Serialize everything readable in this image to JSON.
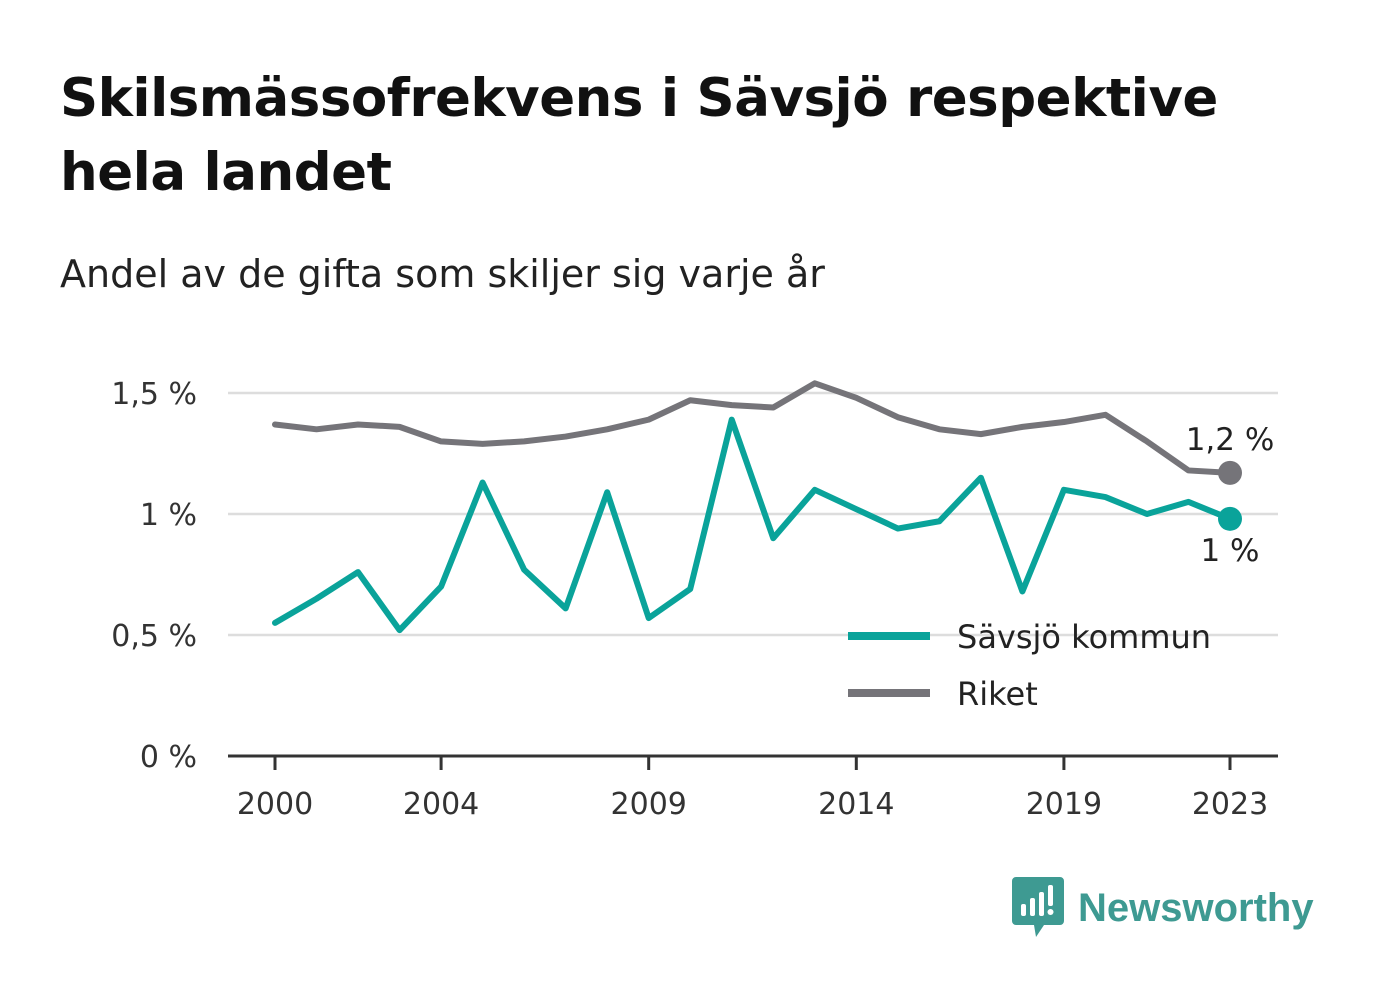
{
  "title": "Skilsmässofrekvens i Sävsjö respektive hela landet",
  "subtitle": "Andel av de gifta som skiljer sig varje år",
  "colors": {
    "savsjo": "#0aa39a",
    "riket": "#757479",
    "grid": "#dddddd",
    "axis": "#333333",
    "brand": "#3e9a92"
  },
  "brand": {
    "name": "Newsworthy",
    "icon": "bar-chart-speech-bubble-icon"
  },
  "chart_data": {
    "type": "line",
    "x": [
      2000,
      2001,
      2002,
      2003,
      2004,
      2005,
      2006,
      2007,
      2008,
      2009,
      2010,
      2011,
      2012,
      2013,
      2014,
      2015,
      2016,
      2017,
      2018,
      2019,
      2020,
      2021,
      2022,
      2023
    ],
    "x_tick_values": [
      2000,
      2004,
      2009,
      2014,
      2019,
      2023
    ],
    "x_tick_labels": [
      "2000",
      "2004",
      "2009",
      "2014",
      "2019",
      "2023"
    ],
    "y_tick_values": [
      0,
      0.5,
      1,
      1.5
    ],
    "y_tick_labels": [
      "0 %",
      "0,5 %",
      "1 %",
      "1,5 %"
    ],
    "ylim": [
      0,
      1.5
    ],
    "grid": true,
    "legend_position": "bottom-right",
    "series": [
      {
        "name": "Sävsjö kommun",
        "color": "#0aa39a",
        "values": [
          0.55,
          0.65,
          0.76,
          0.52,
          0.7,
          1.13,
          0.77,
          0.61,
          1.09,
          0.57,
          0.69,
          1.39,
          0.9,
          1.1,
          1.02,
          0.94,
          0.97,
          1.15,
          0.68,
          1.1,
          1.07,
          1.0,
          1.05,
          0.98
        ],
        "end_label": "1 %"
      },
      {
        "name": "Riket",
        "color": "#757479",
        "values": [
          1.37,
          1.35,
          1.37,
          1.36,
          1.3,
          1.29,
          1.3,
          1.32,
          1.35,
          1.39,
          1.47,
          1.45,
          1.44,
          1.54,
          1.48,
          1.4,
          1.35,
          1.33,
          1.36,
          1.38,
          1.41,
          1.3,
          1.18,
          1.17
        ],
        "end_label": "1,2 %"
      }
    ]
  }
}
